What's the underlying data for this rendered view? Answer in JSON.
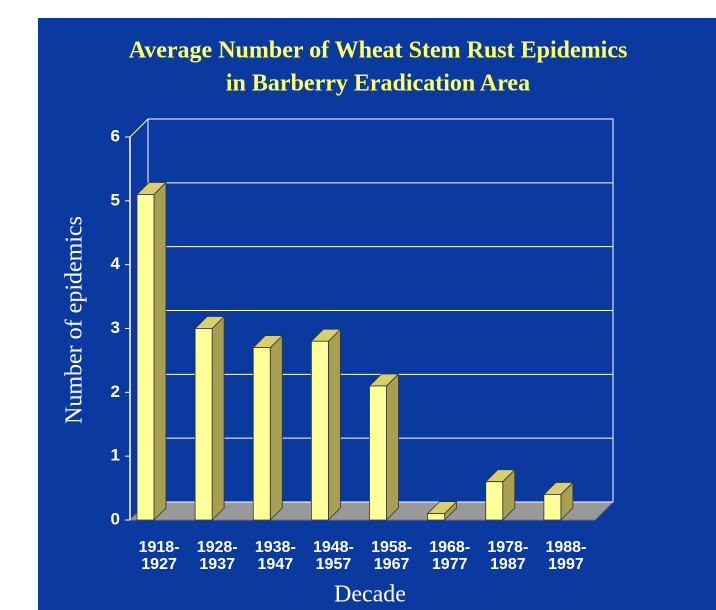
{
  "chart_data": {
    "type": "bar3d",
    "title": [
      "Average Number of Wheat Stem Rust Epidemics",
      "in Barberry Eradication Area"
    ],
    "xlabel": "Decade",
    "ylabel": "Number of epidemics",
    "categories": [
      "1918- 1927",
      "1928- 1937",
      "1938- 1947",
      "1948- 1957",
      "1958- 1967",
      "1968- 1977",
      "1978- 1987",
      "1988- 1997"
    ],
    "values": [
      5.1,
      3.0,
      2.7,
      2.8,
      2.1,
      0.1,
      0.6,
      0.4
    ],
    "color": "#ffff99",
    "ylim": [
      0,
      6
    ],
    "yticks": [
      0,
      1,
      2,
      3,
      4,
      5,
      6
    ],
    "grid": true
  }
}
